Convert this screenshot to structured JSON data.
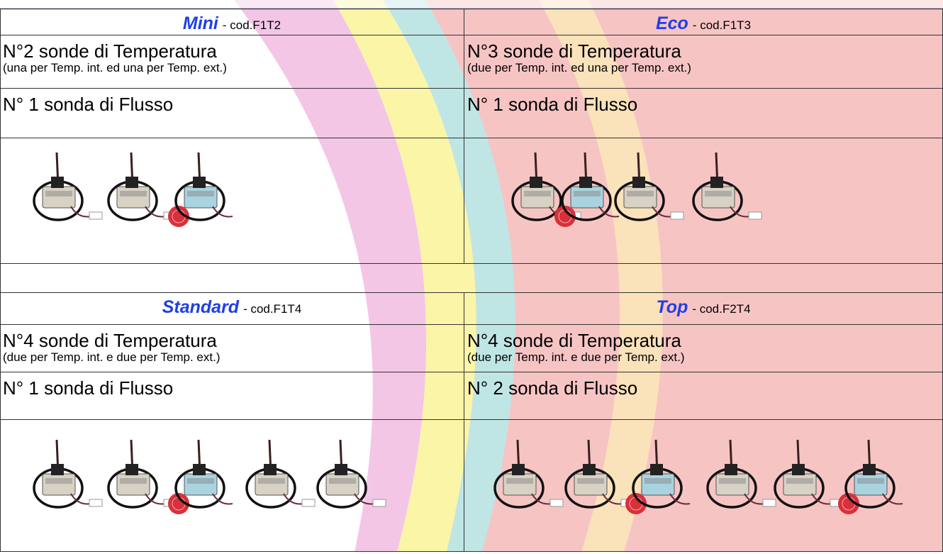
{
  "products": [
    {
      "name": "Mini",
      "code": "- cod.F1T2",
      "sensors": "N°2 sonde di Temperatura",
      "sensors_note": "(una per Temp. int.  ed una per Temp. ext.)",
      "flow": "N° 1 sonda di Flusso"
    },
    {
      "name": "Eco",
      "code": "- cod.F1T3",
      "sensors": "N°3 sonde di Temperatura",
      "sensors_note": "(due per Temp. int.  ed una per Temp. ext.)",
      "flow": "N° 1 sonda di Flusso"
    },
    {
      "name": "Standard",
      "code": "- cod.F1T4",
      "sensors": "N°4 sonde di Temperatura",
      "sensors_note": "(due per Temp. int.  e due per Temp. ext.)",
      "flow": "N° 1 sonda di Flusso"
    },
    {
      "name": "Top",
      "code": "- cod.F2T4",
      "sensors": "N°4 sonde di Temperatura",
      "sensors_note": "(due per Temp. int.  e due per Temp. ext.)",
      "flow": "N° 2 sonda di Flusso"
    }
  ]
}
